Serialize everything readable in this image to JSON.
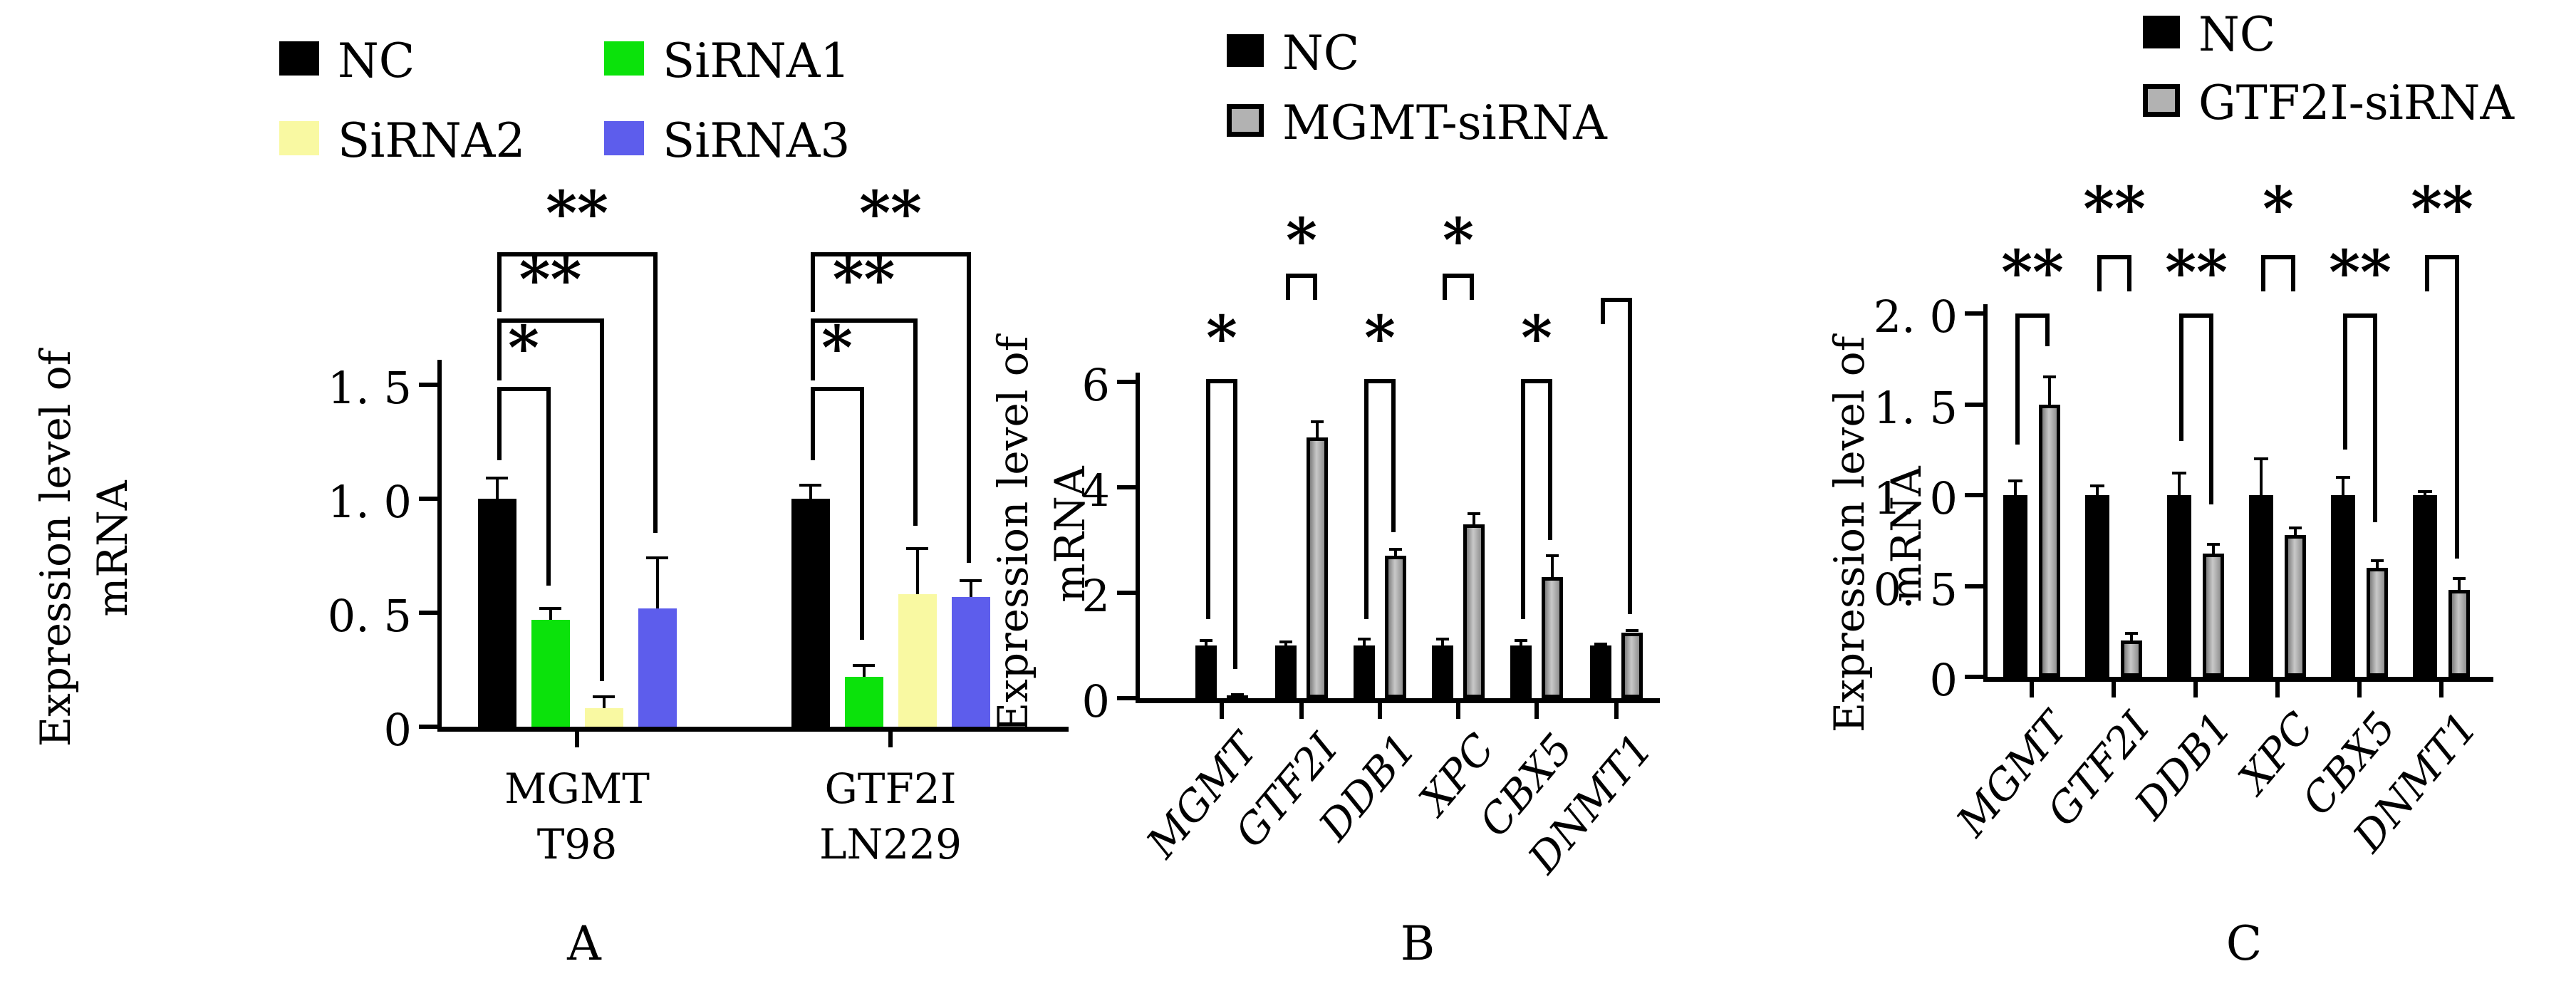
{
  "figure": {
    "background": "#ffffff",
    "panel_letters": [
      "A",
      "B",
      "C"
    ]
  },
  "chart_data": [
    {
      "id": "A",
      "type": "bar",
      "panel_letter": "A",
      "title": "",
      "ylabel_lines": [
        "Expression level of",
        "mRNA"
      ],
      "xlabel": "",
      "ylim": [
        0,
        1.6
      ],
      "yticks": [
        0,
        0.5,
        1.0,
        1.5
      ],
      "ytick_labels": [
        "0",
        "0. 5",
        "1. 0",
        "1. 5"
      ],
      "grid": false,
      "legend_position": "top",
      "categories": [
        [
          "MGMT",
          "T98"
        ],
        [
          "GTF2I",
          "LN229"
        ]
      ],
      "series": [
        {
          "name": "NC",
          "color": "#000000",
          "border": false,
          "values": [
            1.0,
            1.0
          ],
          "errors": [
            0.09,
            0.06
          ]
        },
        {
          "name": "SiRNA1",
          "color": "#0be20b",
          "border": false,
          "values": [
            0.47,
            0.22
          ],
          "errors": [
            0.05,
            0.05
          ]
        },
        {
          "name": "SiRNA2",
          "color": "#f9f9a2",
          "border": false,
          "values": [
            0.08,
            0.58
          ],
          "errors": [
            0.05,
            0.2
          ]
        },
        {
          "name": "SiRNA3",
          "color": "#5d5dec",
          "border": false,
          "values": [
            0.52,
            0.57
          ],
          "errors": [
            0.22,
            0.07
          ]
        }
      ],
      "significance": [
        {
          "group": 0,
          "a": 0,
          "b": 1,
          "top": 1.49,
          "legA": 1.17,
          "legB": 0.62,
          "small": false,
          "star": "*",
          "starY": 1.64
        },
        {
          "group": 0,
          "a": 0,
          "b": 2,
          "top": 1.79,
          "legA": 1.52,
          "legB": 0.2,
          "small": false,
          "star": "**",
          "starY": 1.94
        },
        {
          "group": 0,
          "a": 0,
          "b": 3,
          "top": 2.08,
          "legA": 1.82,
          "legB": 0.85,
          "small": false,
          "star": "**",
          "starY": 2.23
        },
        {
          "group": 1,
          "a": 0,
          "b": 1,
          "top": 1.49,
          "legA": 1.17,
          "legB": 0.38,
          "small": false,
          "star": "*",
          "starY": 1.64
        },
        {
          "group": 1,
          "a": 0,
          "b": 2,
          "top": 1.79,
          "legA": 1.52,
          "legB": 0.88,
          "small": false,
          "star": "**",
          "starY": 1.94
        },
        {
          "group": 1,
          "a": 0,
          "b": 3,
          "top": 2.08,
          "legA": 1.82,
          "legB": 0.72,
          "small": false,
          "star": "**",
          "starY": 2.23
        }
      ]
    },
    {
      "id": "B",
      "type": "bar",
      "panel_letter": "B",
      "title": "",
      "ylabel_lines": [
        "Expression level of",
        "mRNA"
      ],
      "xlabel": "",
      "ylim": [
        0,
        6.3
      ],
      "yticks": [
        0,
        2,
        4,
        6
      ],
      "ytick_labels": [
        "0",
        "2",
        "4",
        "6"
      ],
      "grid": false,
      "legend_position": "top",
      "categories": [
        "MGMT",
        "GTF2I",
        "DDB1",
        "XPC",
        "CBX5",
        "DNMT1"
      ],
      "series": [
        {
          "name": "NC",
          "color": "#000000",
          "border": false,
          "values": [
            1.0,
            1.0,
            1.0,
            1.0,
            1.0,
            1.0
          ],
          "errors": [
            0.1,
            0.07,
            0.12,
            0.12,
            0.1,
            0.03
          ]
        },
        {
          "name": "MGMT-siRNA",
          "color": "#b2b2b2",
          "border": true,
          "values": [
            0.05,
            4.95,
            2.7,
            3.3,
            2.3,
            1.25
          ],
          "errors": [
            0.02,
            0.3,
            0.12,
            0.2,
            0.4,
            0.04
          ]
        }
      ],
      "significance": [
        {
          "group": 0,
          "a": 0,
          "b": 1,
          "top": 6.05,
          "legA": 1.5,
          "legB": 0.55,
          "small": false,
          "star": "*",
          "starY": 6.75
        },
        {
          "group": 1,
          "a": 0,
          "b": 1,
          "top": 8.05,
          "legA": 7.55,
          "legB": 7.55,
          "small": true,
          "star": "*",
          "starY": 8.6
        },
        {
          "group": 2,
          "a": 0,
          "b": 1,
          "top": 6.05,
          "legA": 1.5,
          "legB": 3.15,
          "small": false,
          "star": "*",
          "starY": 6.75
        },
        {
          "group": 3,
          "a": 0,
          "b": 1,
          "top": 8.05,
          "legA": 7.55,
          "legB": 7.55,
          "small": true,
          "star": "*",
          "starY": 8.6
        },
        {
          "group": 4,
          "a": 0,
          "b": 1,
          "top": 6.05,
          "legA": 1.5,
          "legB": 3.0,
          "small": false,
          "star": "*",
          "starY": 6.75
        },
        {
          "group": 5,
          "a": 0,
          "b": 1,
          "top": 7.6,
          "legA": 7.1,
          "legB": 1.6,
          "small": false,
          "star": "",
          "starY": 8.0
        }
      ]
    },
    {
      "id": "C",
      "type": "bar",
      "panel_letter": "C",
      "title": "",
      "ylabel_lines": [
        "Expression level of",
        "mRNA"
      ],
      "xlabel": "",
      "ylim": [
        0,
        2.05
      ],
      "yticks": [
        0,
        0.5,
        1.0,
        1.5,
        2.0
      ],
      "ytick_labels": [
        "0",
        "0. 5",
        "1. 0",
        "1. 5",
        "2. 0"
      ],
      "grid": false,
      "legend_position": "top-right",
      "categories": [
        "MGMT",
        "GTF2I",
        "DDB1",
        "XPC",
        "CBX5",
        "DNMT1"
      ],
      "series": [
        {
          "name": "NC",
          "color": "#000000",
          "border": false,
          "values": [
            1.0,
            1.0,
            1.0,
            1.0,
            1.0,
            1.0
          ],
          "errors": [
            0.08,
            0.05,
            0.12,
            0.2,
            0.1,
            0.02
          ]
        },
        {
          "name": "GTF2I-siRNA",
          "color": "#b2b2b2",
          "border": true,
          "values": [
            1.5,
            0.2,
            0.68,
            0.78,
            0.6,
            0.48
          ],
          "errors": [
            0.15,
            0.04,
            0.05,
            0.04,
            0.04,
            0.06
          ]
        }
      ],
      "significance": [
        {
          "group": 0,
          "a": 0,
          "b": 1,
          "top": 2.0,
          "legA": 1.28,
          "legB": 1.82,
          "small": false,
          "star": "**",
          "starY": 2.2
        },
        {
          "group": 1,
          "a": 0,
          "b": 1,
          "top": 2.32,
          "legA": 2.12,
          "legB": 2.12,
          "small": true,
          "star": "**",
          "starY": 2.55
        },
        {
          "group": 2,
          "a": 0,
          "b": 1,
          "top": 2.0,
          "legA": 1.3,
          "legB": 0.95,
          "small": false,
          "star": "**",
          "starY": 2.2
        },
        {
          "group": 3,
          "a": 0,
          "b": 1,
          "top": 2.32,
          "legA": 2.12,
          "legB": 2.12,
          "small": true,
          "star": "*",
          "starY": 2.55
        },
        {
          "group": 4,
          "a": 0,
          "b": 1,
          "top": 2.0,
          "legA": 1.25,
          "legB": 0.85,
          "small": false,
          "star": "**",
          "starY": 2.2
        },
        {
          "group": 5,
          "a": 0,
          "b": 1,
          "top": 2.32,
          "legA": 2.12,
          "legB": 0.65,
          "small": false,
          "star": "**",
          "starY": 2.55
        }
      ]
    }
  ]
}
